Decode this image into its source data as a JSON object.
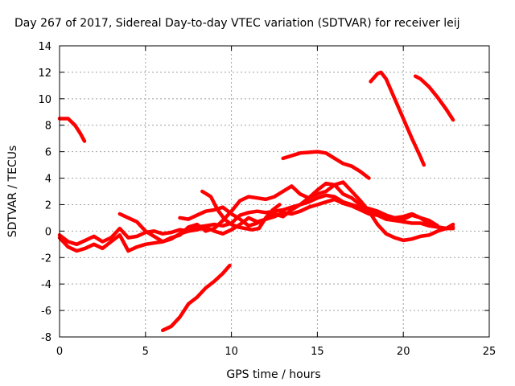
{
  "chart_data": {
    "type": "line",
    "title": "Day 267 of 2017, Sidereal Day-to-day VTEC variation (SDTVAR) for receiver leij",
    "xlabel": "GPS time / hours",
    "ylabel": "SDTVAR / TECUs",
    "xlim": [
      0,
      25
    ],
    "ylim": [
      -8,
      14
    ],
    "xticks": [
      0,
      5,
      10,
      15,
      20,
      25
    ],
    "yticks": [
      -8,
      -6,
      -4,
      -2,
      0,
      2,
      4,
      6,
      8,
      10,
      12,
      14
    ],
    "xtick_labels": [
      "0",
      "5",
      "10",
      "15",
      "20",
      "25"
    ],
    "ytick_labels": [
      "-8",
      "-6",
      "-4",
      "-2",
      "0",
      "2",
      "4",
      "6",
      "8",
      "10",
      "12",
      "14"
    ],
    "grid": true,
    "color": "#ff0000",
    "series": [
      {
        "name": "trace-1",
        "x": [
          0.0,
          0.5,
          0.9,
          1.2,
          1.45
        ],
        "y": [
          8.5,
          8.5,
          8.0,
          7.4,
          6.8
        ]
      },
      {
        "name": "trace-2",
        "x": [
          18.1,
          18.5,
          18.7,
          19.0,
          19.5,
          20.0,
          20.5,
          21.0,
          21.2
        ],
        "y": [
          11.3,
          11.9,
          12.0,
          11.5,
          10.0,
          8.5,
          7.0,
          5.6,
          5.0
        ]
      },
      {
        "name": "trace-3",
        "x": [
          20.7,
          21.0,
          21.5,
          22.0,
          22.5,
          22.9
        ],
        "y": [
          11.7,
          11.5,
          10.9,
          10.1,
          9.2,
          8.4
        ]
      },
      {
        "name": "trace-4",
        "x": [
          13.0,
          13.5,
          14.0,
          14.5,
          15.0,
          15.5,
          16.0,
          16.5,
          17.0,
          17.5,
          18.0
        ],
        "y": [
          5.5,
          5.7,
          5.9,
          5.95,
          6.0,
          5.9,
          5.5,
          5.1,
          4.9,
          4.5,
          4.0
        ]
      },
      {
        "name": "trace-5",
        "x": [
          6.0,
          6.5,
          7.0,
          7.5,
          8.0,
          8.5,
          9.0,
          9.5,
          9.9
        ],
        "y": [
          -7.5,
          -7.2,
          -6.5,
          -5.5,
          -5.0,
          -4.3,
          -3.8,
          -3.2,
          -2.6
        ]
      },
      {
        "name": "trace-6",
        "x": [
          0.0,
          0.5,
          1.0,
          1.5,
          2.0,
          2.5,
          3.0,
          3.5,
          4.0,
          4.5,
          5.0,
          5.5,
          6.0,
          6.5,
          7.0,
          7.5,
          8.0,
          8.5,
          9.0,
          9.5,
          10.0,
          10.5,
          11.0,
          11.5,
          12.0,
          12.5,
          13.0,
          13.5,
          14.0,
          14.5,
          15.0,
          15.5,
          16.0,
          16.5,
          17.0,
          17.5,
          18.0,
          18.5,
          19.0,
          19.5,
          20.0,
          20.5,
          21.0,
          21.5,
          22.0,
          22.5,
          22.9
        ],
        "y": [
          -0.3,
          -0.8,
          -1.0,
          -0.7,
          -0.4,
          -0.8,
          -0.5,
          0.2,
          -0.5,
          -0.4,
          -0.1,
          0.0,
          -0.2,
          -0.1,
          0.1,
          0.0,
          0.3,
          0.4,
          0.5,
          0.4,
          0.6,
          1.2,
          1.4,
          1.5,
          1.4,
          1.5,
          1.6,
          1.8,
          2.0,
          2.2,
          2.5,
          2.7,
          2.6,
          2.2,
          2.0,
          1.8,
          1.7,
          1.5,
          1.2,
          1.0,
          0.9,
          1.2,
          1.0,
          0.5,
          0.3,
          0.2,
          0.3
        ]
      },
      {
        "name": "trace-7",
        "x": [
          0.0,
          0.5,
          1.0,
          1.5,
          2.0,
          2.5,
          3.0,
          3.5,
          4.0,
          4.5,
          5.0,
          5.5,
          6.0,
          6.5,
          7.0,
          7.5,
          8.0,
          8.5,
          9.0,
          9.5,
          10.0,
          10.5,
          11.0,
          11.5,
          12.0,
          12.5,
          13.0,
          13.5,
          14.0,
          14.5,
          15.0,
          15.5,
          16.0,
          16.5,
          17.0,
          17.5,
          18.0,
          18.5,
          19.0,
          19.5,
          20.0,
          20.5,
          21.0,
          21.5,
          22.0,
          22.5,
          22.9
        ],
        "y": [
          -0.5,
          -1.2,
          -1.5,
          -1.3,
          -1.0,
          -1.3,
          -0.8,
          -0.3,
          -1.5,
          -1.2,
          -1.0,
          -0.9,
          -0.8,
          -0.5,
          -0.3,
          0.3,
          0.5,
          0.0,
          0.2,
          0.8,
          1.5,
          2.3,
          2.6,
          2.5,
          2.4,
          2.6,
          3.0,
          3.4,
          2.8,
          2.5,
          3.1,
          3.6,
          3.5,
          2.8,
          2.5,
          2.0,
          1.5,
          0.5,
          -0.2,
          -0.5,
          -0.7,
          -0.6,
          -0.4,
          -0.3,
          0.0,
          0.2,
          0.5
        ]
      },
      {
        "name": "trace-8",
        "x": [
          3.5,
          4.0,
          4.5,
          5.0,
          5.5,
          6.0,
          6.5,
          7.0,
          7.5,
          8.0,
          8.5,
          9.0,
          9.5,
          10.0,
          10.5,
          11.0,
          11.5,
          12.0,
          12.5,
          13.0,
          13.5,
          14.0,
          14.5,
          15.0,
          15.5,
          16.0,
          16.5,
          17.0,
          17.5,
          18.0,
          18.5,
          19.0,
          19.5,
          20.0,
          20.5,
          21.0,
          21.5,
          22.0
        ],
        "y": [
          1.3,
          1.0,
          0.7,
          0.0,
          -0.4,
          -0.8,
          -0.6,
          -0.2,
          0.0,
          0.1,
          0.3,
          0.0,
          -0.2,
          0.1,
          0.5,
          1.0,
          0.7,
          0.9,
          1.3,
          1.1,
          1.6,
          2.0,
          2.5,
          2.8,
          3.0,
          3.5,
          3.7,
          3.0,
          2.3,
          1.5,
          1.3,
          1.1,
          1.0,
          1.1,
          1.3,
          1.0,
          0.8,
          0.4
        ]
      },
      {
        "name": "trace-9",
        "x": [
          7.0,
          7.5,
          8.0,
          8.5,
          9.0,
          9.5,
          10.0,
          10.5,
          11.0,
          11.5,
          12.0,
          12.5,
          13.0,
          13.5,
          14.0,
          14.5,
          15.0,
          15.5,
          16.0,
          16.5,
          17.0,
          17.5,
          18.0,
          18.5,
          19.0,
          19.5,
          20.0,
          20.5,
          21.0,
          21.5,
          22.0,
          22.5,
          22.9
        ],
        "y": [
          1.0,
          0.9,
          1.2,
          1.5,
          1.6,
          1.8,
          1.3,
          0.9,
          0.4,
          0.6,
          0.9,
          1.1,
          1.4,
          1.3,
          1.5,
          1.8,
          2.0,
          2.2,
          2.4,
          2.1,
          1.9,
          1.6,
          1.3,
          1.2,
          0.9,
          0.8,
          0.7,
          0.6,
          0.6,
          0.4,
          0.3,
          0.2,
          0.2
        ]
      },
      {
        "name": "trace-10",
        "x": [
          8.3,
          8.8,
          9.2,
          9.6,
          10.0,
          10.4,
          10.8,
          11.2,
          11.6,
          12.0,
          12.4,
          12.8
        ],
        "y": [
          3.0,
          2.6,
          1.6,
          0.9,
          0.5,
          0.3,
          0.2,
          0.1,
          0.2,
          1.0,
          1.6,
          2.0
        ]
      }
    ]
  }
}
